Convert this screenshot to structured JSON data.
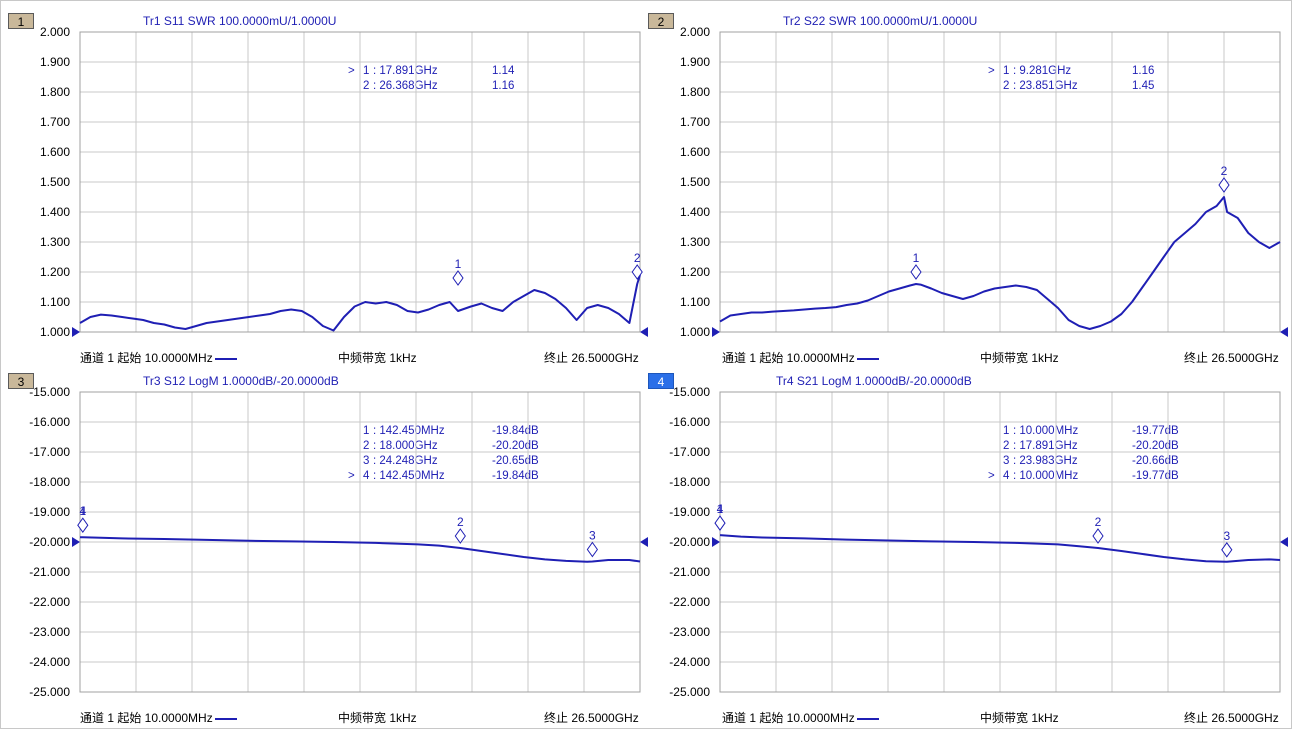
{
  "panels": [
    {
      "id": "1",
      "active": false,
      "title": "Tr1 S11 SWR 100.0000mU/1.0000U",
      "y_labels": [
        "2.000",
        "1.900",
        "1.800",
        "1.700",
        "1.600",
        "1.500",
        "1.400",
        "1.300",
        "1.200",
        "1.100",
        "1.000"
      ],
      "footer": {
        "start": "通道 1 起始 10.0000MHz",
        "bandwidth": "中频带宽 1kHz",
        "stop": "终止 26.5000GHz"
      },
      "markers": [
        {
          "sel": ">",
          "num": "1",
          "freq": ": 17.891GHz",
          "val": "1.14"
        },
        {
          "sel": "",
          "num": "2",
          "freq": ": 26.368GHz",
          "val": "1.16"
        }
      ]
    },
    {
      "id": "2",
      "active": false,
      "title": "Tr2 S22 SWR 100.0000mU/1.0000U",
      "y_labels": [
        "2.000",
        "1.900",
        "1.800",
        "1.700",
        "1.600",
        "1.500",
        "1.400",
        "1.300",
        "1.200",
        "1.100",
        "1.000"
      ],
      "footer": {
        "start": "通道 1 起始 10.0000MHz",
        "bandwidth": "中频带宽 1kHz",
        "stop": "终止 26.5000GHz"
      },
      "markers": [
        {
          "sel": ">",
          "num": "1",
          "freq": ": 9.281GHz",
          "val": "1.16"
        },
        {
          "sel": "",
          "num": "2",
          "freq": ": 23.851GHz",
          "val": "1.45"
        }
      ]
    },
    {
      "id": "3",
      "active": false,
      "title": "Tr3 S12 LogM 1.0000dB/-20.0000dB",
      "y_labels": [
        "-15.000",
        "-16.000",
        "-17.000",
        "-18.000",
        "-19.000",
        "-20.000",
        "-21.000",
        "-22.000",
        "-23.000",
        "-24.000",
        "-25.000"
      ],
      "footer": {
        "start": "通道 1 起始 10.0000MHz",
        "bandwidth": "中频带宽 1kHz",
        "stop": "终止 26.5000GHz"
      },
      "markers": [
        {
          "sel": "",
          "num": "1",
          "freq": ": 142.450MHz",
          "val": "-19.84dB"
        },
        {
          "sel": "",
          "num": "2",
          "freq": ": 18.000GHz",
          "val": "-20.20dB"
        },
        {
          "sel": "",
          "num": "3",
          "freq": ": 24.248GHz",
          "val": "-20.65dB"
        },
        {
          "sel": ">",
          "num": "4",
          "freq": ": 142.450MHz",
          "val": "-19.84dB"
        }
      ]
    },
    {
      "id": "4",
      "active": true,
      "title": "Tr4 S21 LogM 1.0000dB/-20.0000dB",
      "y_labels": [
        "-15.000",
        "-16.000",
        "-17.000",
        "-18.000",
        "-19.000",
        "-20.000",
        "-21.000",
        "-22.000",
        "-23.000",
        "-24.000",
        "-25.000"
      ],
      "footer": {
        "start": "通道 1 起始 10.0000MHz",
        "bandwidth": "中频带宽 1kHz",
        "stop": "终止 26.5000GHz"
      },
      "markers": [
        {
          "sel": "",
          "num": "1",
          "freq": ": 10.000MHz",
          "val": "-19.77dB"
        },
        {
          "sel": "",
          "num": "2",
          "freq": ": 17.891GHz",
          "val": "-20.20dB"
        },
        {
          "sel": "",
          "num": "3",
          "freq": ": 23.983GHz",
          "val": "-20.66dB"
        },
        {
          "sel": ">",
          "num": "4",
          "freq": ": 10.000MHz",
          "val": "-19.77dB"
        }
      ]
    }
  ],
  "chart_data": [
    {
      "type": "line",
      "title": "Tr1 S11 SWR 100.0000mU/1.0000U",
      "xlim": [
        0.01,
        26.5
      ],
      "ylim": [
        1.0,
        2.0
      ],
      "grid": true,
      "trace_color": "#1f1fb4",
      "series": [
        {
          "x": [
            0.01,
            0.5,
            1.0,
            1.5,
            2.0,
            2.5,
            3.0,
            3.5,
            4.0,
            4.5,
            5.0,
            5.5,
            6.0,
            6.5,
            7.0,
            7.5,
            8.0,
            8.5,
            9.0,
            9.5,
            10.0,
            10.5,
            11.0,
            11.5,
            12.0,
            12.5,
            13.0,
            13.5,
            14.0,
            14.5,
            15.0,
            15.5,
            16.0,
            16.5,
            17.0,
            17.5,
            17.891,
            18.5,
            19.0,
            19.5,
            20.0,
            20.5,
            21.0,
            21.5,
            22.0,
            22.5,
            23.0,
            23.5,
            24.0,
            24.5,
            25.0,
            25.5,
            26.0,
            26.368,
            26.5
          ],
          "y": [
            1.03,
            1.05,
            1.058,
            1.055,
            1.05,
            1.045,
            1.04,
            1.03,
            1.025,
            1.015,
            1.01,
            1.02,
            1.03,
            1.035,
            1.04,
            1.045,
            1.05,
            1.055,
            1.06,
            1.07,
            1.075,
            1.07,
            1.05,
            1.02,
            1.005,
            1.05,
            1.085,
            1.1,
            1.095,
            1.1,
            1.09,
            1.07,
            1.065,
            1.075,
            1.09,
            1.1,
            1.07,
            1.085,
            1.095,
            1.08,
            1.07,
            1.1,
            1.12,
            1.14,
            1.13,
            1.11,
            1.08,
            1.04,
            1.08,
            1.09,
            1.08,
            1.06,
            1.03,
            1.16,
            1.19
          ]
        }
      ]
    },
    {
      "type": "line",
      "title": "Tr2 S22 SWR 100.0000mU/1.0000U",
      "xlim": [
        0.01,
        26.5
      ],
      "ylim": [
        1.0,
        2.0
      ],
      "grid": true,
      "trace_color": "#1f1fb4",
      "series": [
        {
          "x": [
            0.01,
            0.5,
            1.0,
            1.5,
            2.0,
            2.5,
            3.0,
            3.5,
            4.0,
            4.5,
            5.0,
            5.5,
            6.0,
            6.5,
            7.0,
            7.5,
            8.0,
            8.5,
            9.0,
            9.281,
            9.5,
            10.0,
            10.5,
            11.0,
            11.5,
            12.0,
            12.5,
            13.0,
            13.5,
            14.0,
            14.5,
            15.0,
            15.5,
            16.0,
            16.5,
            17.0,
            17.5,
            18.0,
            18.5,
            19.0,
            19.5,
            20.0,
            20.5,
            21.0,
            21.5,
            22.0,
            22.5,
            23.0,
            23.5,
            23.851,
            24.0,
            24.5,
            25.0,
            25.5,
            26.0,
            26.5
          ],
          "y": [
            1.035,
            1.055,
            1.06,
            1.065,
            1.065,
            1.068,
            1.07,
            1.072,
            1.075,
            1.078,
            1.08,
            1.083,
            1.09,
            1.095,
            1.105,
            1.12,
            1.135,
            1.145,
            1.155,
            1.16,
            1.158,
            1.145,
            1.13,
            1.12,
            1.11,
            1.12,
            1.135,
            1.145,
            1.15,
            1.155,
            1.15,
            1.14,
            1.11,
            1.08,
            1.04,
            1.02,
            1.01,
            1.02,
            1.035,
            1.06,
            1.1,
            1.15,
            1.2,
            1.25,
            1.3,
            1.33,
            1.36,
            1.4,
            1.42,
            1.45,
            1.4,
            1.38,
            1.33,
            1.3,
            1.28,
            1.3
          ]
        }
      ]
    },
    {
      "type": "line",
      "title": "Tr3 S12 LogM 1.0000dB/-20.0000dB",
      "xlim": [
        0.01,
        26.5
      ],
      "ylim": [
        -25.0,
        -15.0
      ],
      "grid": true,
      "trace_color": "#1f1fb4",
      "series": [
        {
          "x": [
            0.01,
            0.142,
            1.0,
            2.0,
            4.0,
            6.0,
            8.0,
            10.0,
            12.0,
            14.0,
            16.0,
            17.0,
            18.0,
            19.0,
            20.0,
            21.0,
            22.0,
            23.0,
            24.0,
            24.248,
            25.0,
            26.0,
            26.5
          ],
          "y": [
            -19.84,
            -19.84,
            -19.86,
            -19.88,
            -19.9,
            -19.93,
            -19.96,
            -19.98,
            -20.0,
            -20.03,
            -20.08,
            -20.12,
            -20.2,
            -20.3,
            -20.4,
            -20.5,
            -20.58,
            -20.63,
            -20.66,
            -20.65,
            -20.6,
            -20.6,
            -20.65
          ]
        }
      ]
    },
    {
      "type": "line",
      "title": "Tr4 S21 LogM 1.0000dB/-20.0000dB",
      "xlim": [
        0.01,
        26.5
      ],
      "ylim": [
        -25.0,
        -15.0
      ],
      "grid": true,
      "trace_color": "#1f1fb4",
      "series": [
        {
          "x": [
            0.01,
            1.0,
            2.0,
            4.0,
            6.0,
            8.0,
            10.0,
            12.0,
            14.0,
            16.0,
            17.0,
            17.891,
            19.0,
            20.0,
            21.0,
            22.0,
            23.0,
            23.983,
            25.0,
            26.0,
            26.5
          ],
          "y": [
            -19.77,
            -19.82,
            -19.85,
            -19.88,
            -19.92,
            -19.95,
            -19.98,
            -20.0,
            -20.03,
            -20.08,
            -20.14,
            -20.2,
            -20.3,
            -20.4,
            -20.5,
            -20.58,
            -20.64,
            -20.66,
            -20.6,
            -20.58,
            -20.6
          ]
        }
      ]
    }
  ]
}
